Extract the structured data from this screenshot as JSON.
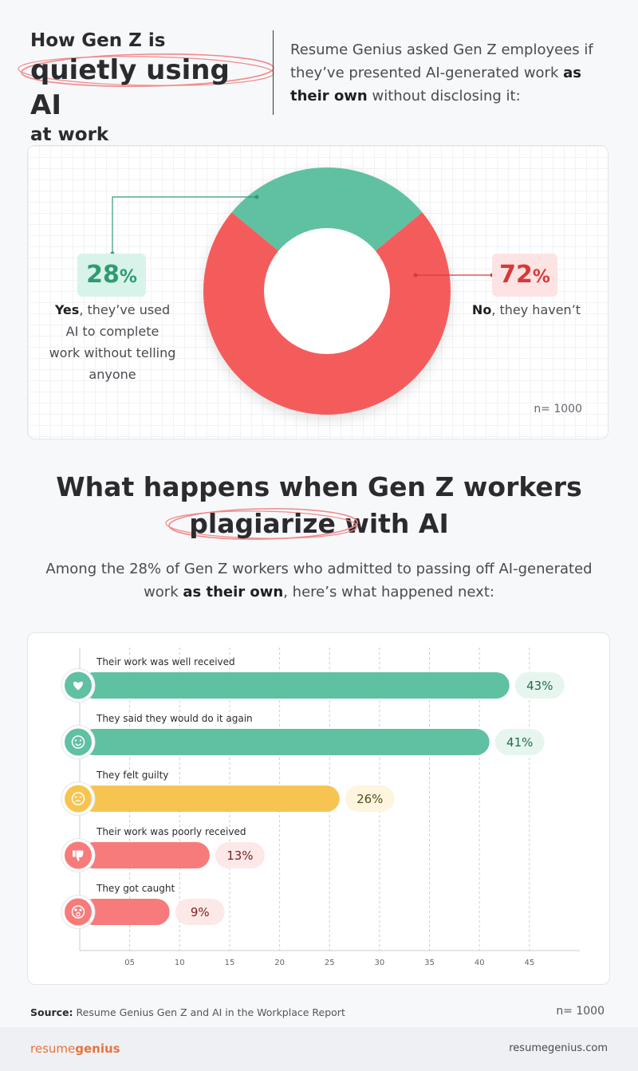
{
  "header": {
    "title_line1": "How Gen Z is",
    "title_line2": "quietly using AI",
    "title_line3": "at work",
    "intro_pre": "Resume Genius asked Gen Z employees if they’ve presented AI-generated work ",
    "intro_bold": "as their own",
    "intro_post": " without disclosing it:"
  },
  "donut": {
    "yes_value": "28",
    "no_value": "72",
    "percent_symbol": "%",
    "yes_bold": "Yes",
    "yes_text": ", they’ve used AI to complete work without telling anyone",
    "no_bold": "No",
    "no_text": ", they haven’t",
    "n_label": "n= 1000"
  },
  "section2": {
    "title_line1": "What happens when Gen Z workers",
    "title_highlight": "plagiarize",
    "title_rest": " with AI",
    "intro_pre": "Among the 28% of Gen Z workers who admitted to passing off AI-generated work ",
    "intro_bold": "as their own",
    "intro_post": ", here’s what happened next:"
  },
  "chart_data": [
    {
      "type": "pie",
      "categories": [
        "Yes, they’ve used AI to complete work without telling anyone",
        "No, they haven’t"
      ],
      "values": [
        28,
        72
      ],
      "colors": [
        "#5fc1a2",
        "#f45b5b"
      ]
    },
    {
      "type": "bar",
      "orientation": "horizontal",
      "categories": [
        "Their work was well received",
        "They said they would do it again",
        "They felt guilty",
        "Their work was poorly received",
        "They got caught"
      ],
      "values": [
        43,
        41,
        26,
        13,
        9
      ],
      "value_labels": [
        "43%",
        "41%",
        "26%",
        "13%",
        "9%"
      ],
      "icons": [
        "heart-icon",
        "smile-icon",
        "guilty-face-icon",
        "thumbs-down-icon",
        "shocked-face-icon"
      ],
      "colors": [
        "#5fc1a2",
        "#5fc1a2",
        "#f8c451",
        "#f87b7b",
        "#f87b7b"
      ],
      "label_bg": [
        "#e6f6ef",
        "#e6f6ef",
        "#fdf5de",
        "#fde8e8",
        "#fde8e8"
      ],
      "label_fg": [
        "#1f6b4d",
        "#1f6b4d",
        "#5a4a1a",
        "#7a2222",
        "#7a2222"
      ],
      "xticks": [
        "05",
        "10",
        "15",
        "20",
        "25",
        "30",
        "35",
        "40",
        "45"
      ],
      "xlim": [
        0,
        50
      ],
      "grid": true
    }
  ],
  "footer": {
    "source_bold": "Source:",
    "source_text": " Resume Genius Gen Z and AI in the Workplace Report",
    "n_label": "n= 1000",
    "brand_regular": "resume",
    "brand_bold": "genius",
    "site": "resumegenius.com"
  }
}
